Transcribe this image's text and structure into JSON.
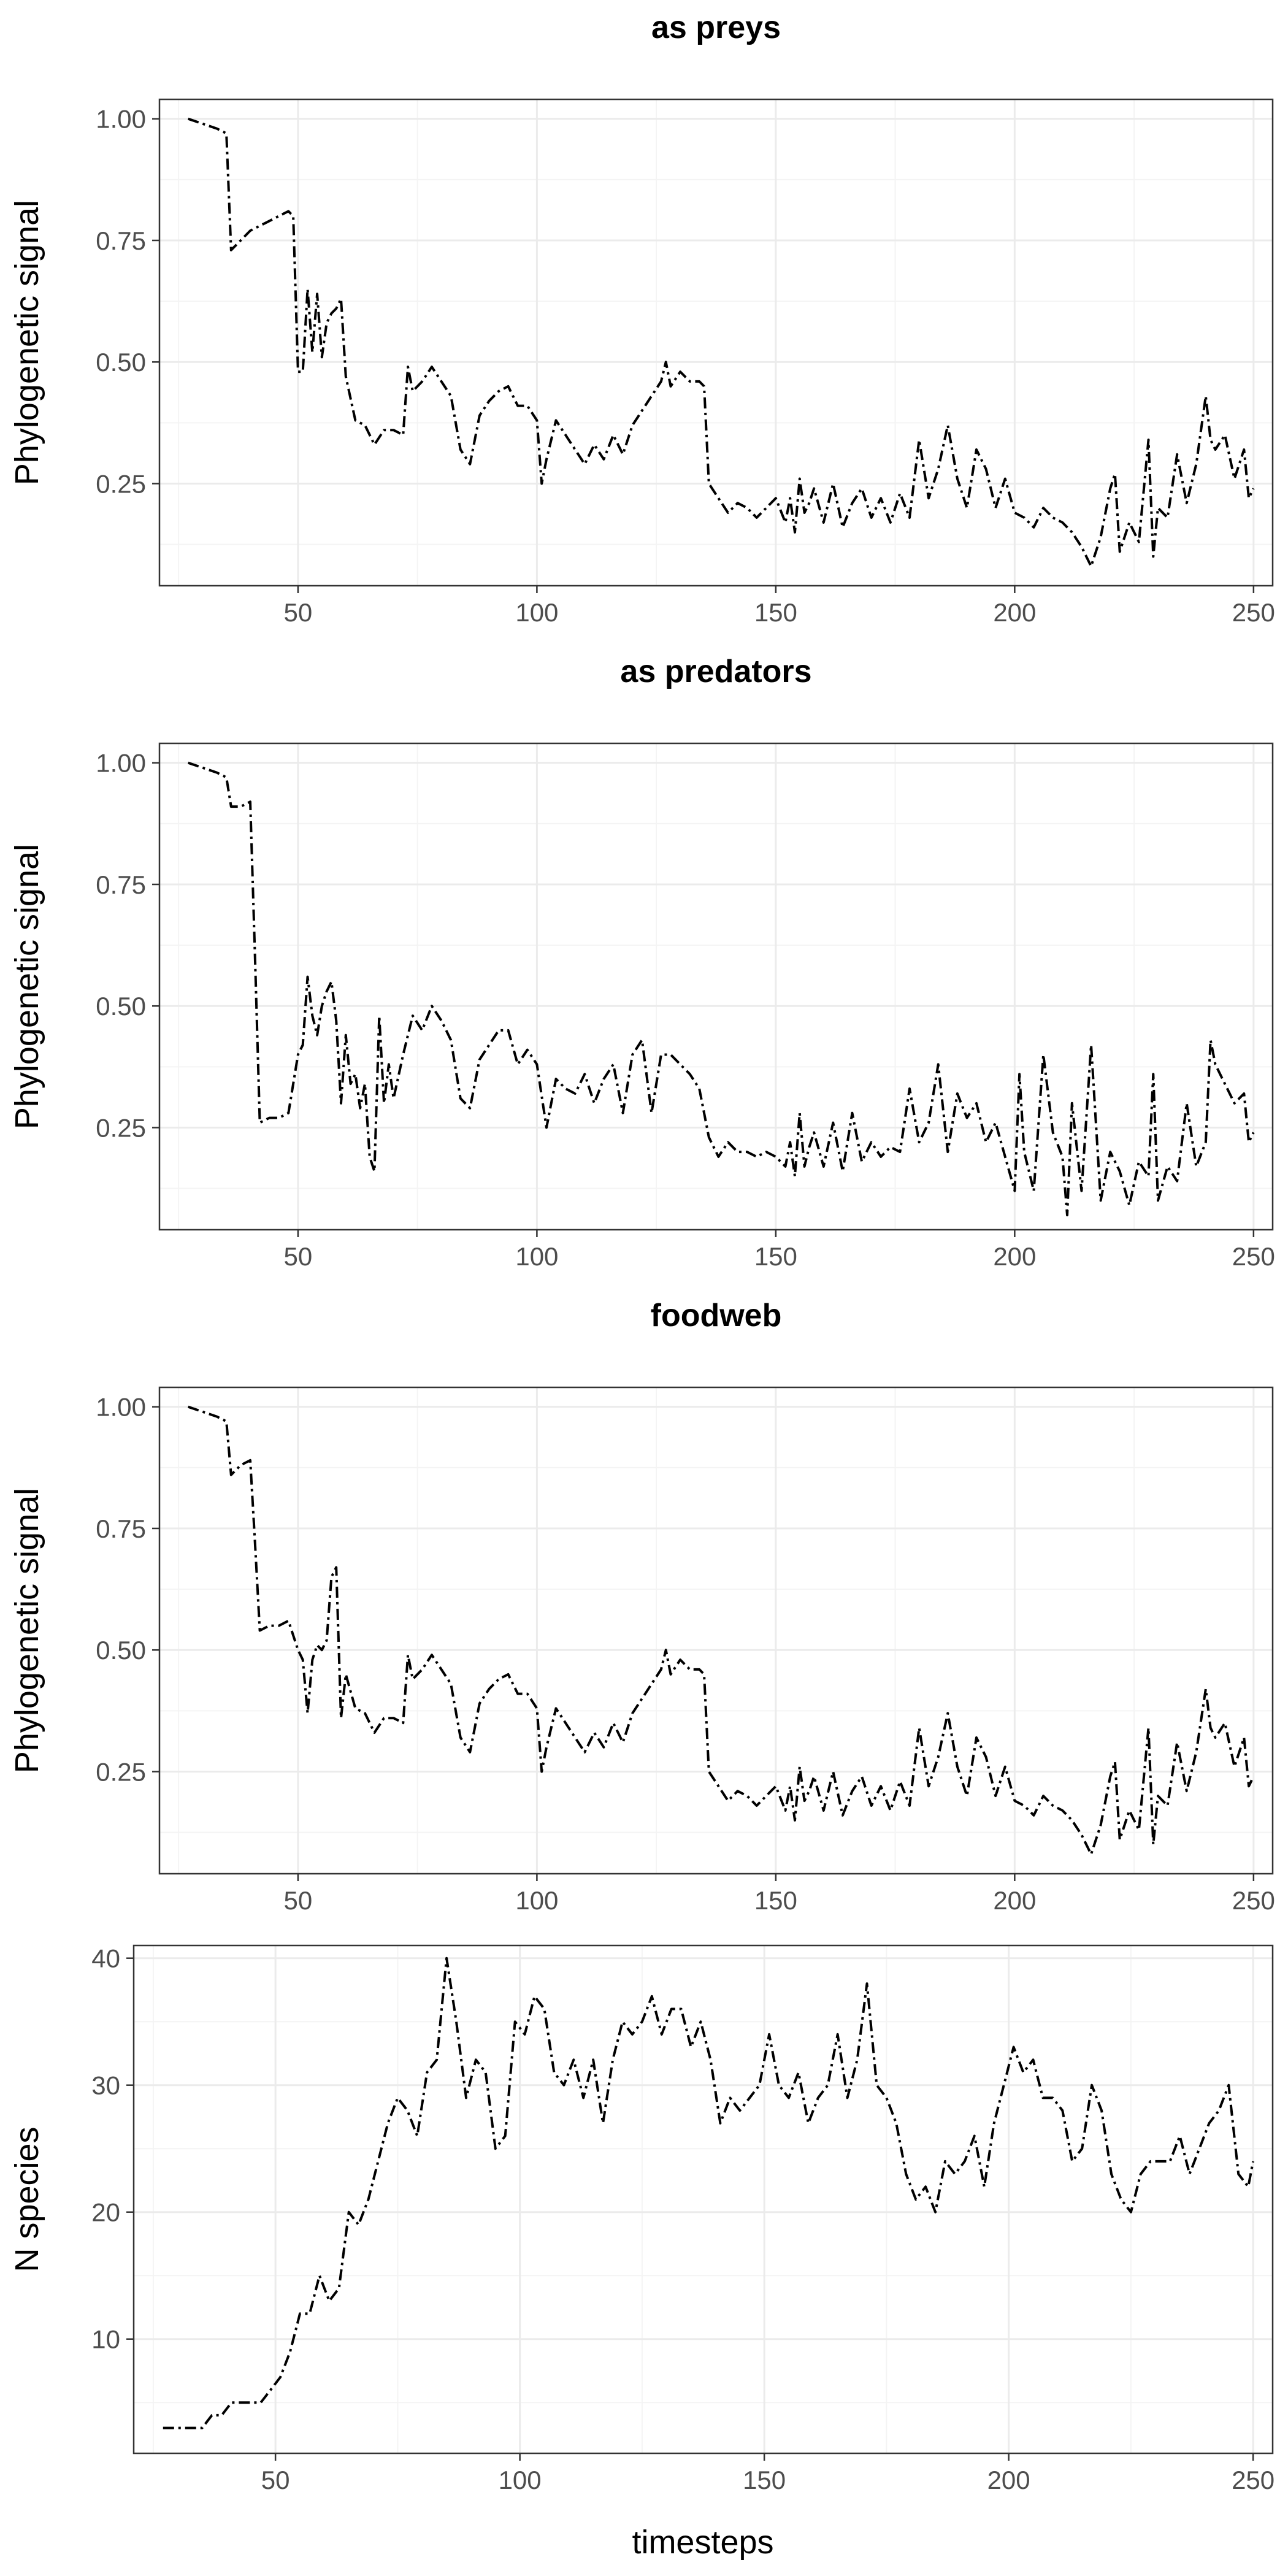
{
  "chart_data": [
    {
      "type": "line",
      "title": "as preys",
      "xlabel": "",
      "ylabel": "Phylogenetic signal",
      "xlim": [
        21,
        254
      ],
      "ylim": [
        0.04,
        1.04
      ],
      "xticks": [
        50,
        100,
        150,
        200,
        250
      ],
      "yticks": [
        0.25,
        0.5,
        0.75,
        1.0
      ],
      "ytick_labels": [
        "0.25",
        "0.50",
        "0.75",
        "1.00"
      ],
      "grid": true,
      "legend": "none",
      "x": [
        27,
        30,
        33,
        35,
        36,
        38,
        40,
        42,
        44,
        46,
        48,
        49,
        50,
        51,
        52,
        53,
        54,
        55,
        56,
        57,
        58,
        59,
        60,
        62,
        64,
        66,
        68,
        70,
        72,
        73,
        74,
        76,
        78,
        80,
        82,
        84,
        86,
        88,
        90,
        92,
        94,
        96,
        98,
        100,
        101,
        102,
        104,
        106,
        108,
        110,
        112,
        114,
        116,
        118,
        120,
        122,
        124,
        126,
        127,
        128,
        130,
        132,
        134,
        135,
        136,
        138,
        140,
        142,
        144,
        146,
        148,
        150,
        152,
        153,
        154,
        155,
        156,
        157,
        158,
        160,
        162,
        164,
        166,
        168,
        170,
        172,
        174,
        176,
        178,
        180,
        182,
        184,
        186,
        188,
        190,
        192,
        194,
        196,
        198,
        200,
        202,
        204,
        206,
        208,
        210,
        212,
        214,
        216,
        218,
        220,
        221,
        222,
        224,
        226,
        228,
        229,
        230,
        232,
        234,
        236,
        238,
        240,
        241,
        242,
        244,
        246,
        248,
        249,
        250
      ],
      "series": [
        {
          "color": "#000000",
          "values": [
            1.0,
            0.99,
            0.98,
            0.97,
            0.73,
            0.75,
            0.77,
            0.78,
            0.79,
            0.8,
            0.81,
            0.8,
            0.48,
            0.48,
            0.65,
            0.52,
            0.64,
            0.51,
            0.58,
            0.6,
            0.61,
            0.63,
            0.47,
            0.38,
            0.37,
            0.33,
            0.36,
            0.36,
            0.35,
            0.49,
            0.44,
            0.46,
            0.49,
            0.46,
            0.43,
            0.32,
            0.29,
            0.39,
            0.42,
            0.44,
            0.45,
            0.41,
            0.41,
            0.38,
            0.25,
            0.3,
            0.38,
            0.35,
            0.32,
            0.29,
            0.33,
            0.3,
            0.35,
            0.31,
            0.37,
            0.4,
            0.43,
            0.46,
            0.5,
            0.45,
            0.48,
            0.46,
            0.46,
            0.45,
            0.25,
            0.22,
            0.19,
            0.21,
            0.2,
            0.18,
            0.2,
            0.22,
            0.17,
            0.22,
            0.15,
            0.26,
            0.19,
            0.21,
            0.24,
            0.17,
            0.25,
            0.16,
            0.21,
            0.24,
            0.18,
            0.22,
            0.17,
            0.23,
            0.18,
            0.34,
            0.22,
            0.28,
            0.37,
            0.26,
            0.2,
            0.32,
            0.28,
            0.2,
            0.26,
            0.19,
            0.18,
            0.16,
            0.2,
            0.18,
            0.17,
            0.15,
            0.12,
            0.08,
            0.14,
            0.24,
            0.27,
            0.11,
            0.17,
            0.13,
            0.34,
            0.1,
            0.2,
            0.18,
            0.31,
            0.21,
            0.29,
            0.43,
            0.34,
            0.32,
            0.35,
            0.26,
            0.32,
            0.22,
            0.24
          ]
        }
      ]
    },
    {
      "type": "line",
      "title": "as predators",
      "xlabel": "",
      "ylabel": "Phylogenetic signal",
      "xlim": [
        21,
        254
      ],
      "ylim": [
        0.04,
        1.04
      ],
      "xticks": [
        50,
        100,
        150,
        200,
        250
      ],
      "yticks": [
        0.25,
        0.5,
        0.75,
        1.0
      ],
      "ytick_labels": [
        "0.25",
        "0.50",
        "0.75",
        "1.00"
      ],
      "grid": true,
      "legend": "none",
      "x": [
        27,
        30,
        33,
        35,
        36,
        38,
        40,
        41,
        42,
        44,
        46,
        48,
        50,
        51,
        52,
        53,
        54,
        55,
        56,
        57,
        58,
        59,
        60,
        61,
        62,
        63,
        64,
        65,
        66,
        67,
        68,
        69,
        70,
        72,
        74,
        76,
        78,
        80,
        82,
        84,
        86,
        88,
        90,
        92,
        94,
        96,
        98,
        100,
        102,
        104,
        106,
        108,
        110,
        112,
        114,
        116,
        118,
        120,
        122,
        124,
        126,
        128,
        130,
        132,
        134,
        136,
        138,
        140,
        142,
        144,
        146,
        148,
        150,
        152,
        153,
        154,
        155,
        156,
        157,
        158,
        160,
        162,
        164,
        166,
        168,
        170,
        172,
        174,
        176,
        178,
        180,
        182,
        184,
        186,
        188,
        190,
        192,
        194,
        196,
        198,
        200,
        201,
        202,
        204,
        206,
        208,
        210,
        211,
        212,
        214,
        216,
        218,
        220,
        222,
        224,
        226,
        228,
        229,
        230,
        232,
        234,
        236,
        238,
        240,
        241,
        242,
        244,
        246,
        248,
        249,
        250
      ],
      "series": [
        {
          "color": "#000000",
          "values": [
            1.0,
            0.99,
            0.98,
            0.97,
            0.91,
            0.91,
            0.92,
            0.6,
            0.26,
            0.27,
            0.27,
            0.28,
            0.4,
            0.42,
            0.56,
            0.48,
            0.44,
            0.5,
            0.53,
            0.55,
            0.47,
            0.3,
            0.44,
            0.34,
            0.36,
            0.29,
            0.34,
            0.19,
            0.16,
            0.48,
            0.3,
            0.38,
            0.31,
            0.4,
            0.48,
            0.45,
            0.5,
            0.47,
            0.43,
            0.31,
            0.29,
            0.39,
            0.42,
            0.45,
            0.45,
            0.38,
            0.41,
            0.38,
            0.25,
            0.35,
            0.33,
            0.32,
            0.36,
            0.3,
            0.35,
            0.38,
            0.28,
            0.4,
            0.43,
            0.28,
            0.4,
            0.4,
            0.38,
            0.36,
            0.33,
            0.23,
            0.19,
            0.22,
            0.2,
            0.2,
            0.19,
            0.2,
            0.19,
            0.17,
            0.22,
            0.15,
            0.28,
            0.17,
            0.21,
            0.24,
            0.17,
            0.26,
            0.16,
            0.28,
            0.18,
            0.22,
            0.19,
            0.21,
            0.2,
            0.33,
            0.22,
            0.26,
            0.38,
            0.2,
            0.32,
            0.27,
            0.3,
            0.22,
            0.26,
            0.19,
            0.12,
            0.36,
            0.2,
            0.12,
            0.4,
            0.24,
            0.19,
            0.07,
            0.3,
            0.12,
            0.42,
            0.1,
            0.2,
            0.16,
            0.09,
            0.18,
            0.15,
            0.36,
            0.1,
            0.17,
            0.14,
            0.3,
            0.17,
            0.22,
            0.43,
            0.38,
            0.34,
            0.3,
            0.32,
            0.22,
            0.24
          ]
        }
      ]
    },
    {
      "type": "line",
      "title": "foodweb",
      "xlabel": "",
      "ylabel": "Phylogenetic signal",
      "xlim": [
        21,
        254
      ],
      "ylim": [
        0.04,
        1.04
      ],
      "xticks": [
        50,
        100,
        150,
        200,
        250
      ],
      "yticks": [
        0.25,
        0.5,
        0.75,
        1.0
      ],
      "ytick_labels": [
        "0.25",
        "0.50",
        "0.75",
        "1.00"
      ],
      "grid": true,
      "legend": "none",
      "x": [
        27,
        30,
        33,
        35,
        36,
        38,
        40,
        41,
        42,
        44,
        46,
        48,
        50,
        51,
        52,
        53,
        54,
        55,
        56,
        57,
        58,
        59,
        60,
        62,
        64,
        66,
        68,
        70,
        72,
        73,
        74,
        76,
        78,
        80,
        82,
        84,
        86,
        88,
        90,
        92,
        94,
        96,
        98,
        100,
        101,
        102,
        104,
        106,
        108,
        110,
        112,
        114,
        116,
        118,
        120,
        122,
        124,
        126,
        127,
        128,
        130,
        132,
        134,
        135,
        136,
        138,
        140,
        142,
        144,
        146,
        148,
        150,
        152,
        153,
        154,
        155,
        156,
        157,
        158,
        160,
        162,
        164,
        166,
        168,
        170,
        172,
        174,
        176,
        178,
        180,
        182,
        184,
        186,
        188,
        190,
        192,
        194,
        196,
        198,
        200,
        202,
        204,
        206,
        208,
        210,
        212,
        214,
        216,
        218,
        220,
        221,
        222,
        224,
        226,
        228,
        229,
        230,
        232,
        234,
        236,
        238,
        240,
        241,
        242,
        244,
        246,
        248,
        249,
        250
      ],
      "series": [
        {
          "color": "#000000",
          "values": [
            1.0,
            0.99,
            0.98,
            0.97,
            0.86,
            0.88,
            0.89,
            0.72,
            0.54,
            0.55,
            0.55,
            0.56,
            0.5,
            0.48,
            0.37,
            0.48,
            0.51,
            0.5,
            0.52,
            0.65,
            0.67,
            0.36,
            0.45,
            0.38,
            0.37,
            0.33,
            0.36,
            0.36,
            0.35,
            0.49,
            0.44,
            0.46,
            0.49,
            0.46,
            0.43,
            0.32,
            0.29,
            0.39,
            0.42,
            0.44,
            0.45,
            0.41,
            0.41,
            0.38,
            0.25,
            0.3,
            0.38,
            0.35,
            0.32,
            0.29,
            0.33,
            0.3,
            0.35,
            0.31,
            0.37,
            0.4,
            0.43,
            0.46,
            0.5,
            0.45,
            0.48,
            0.46,
            0.46,
            0.45,
            0.25,
            0.22,
            0.19,
            0.21,
            0.2,
            0.18,
            0.2,
            0.22,
            0.17,
            0.22,
            0.15,
            0.26,
            0.19,
            0.21,
            0.24,
            0.17,
            0.25,
            0.16,
            0.21,
            0.24,
            0.18,
            0.22,
            0.17,
            0.23,
            0.18,
            0.34,
            0.22,
            0.28,
            0.37,
            0.26,
            0.2,
            0.32,
            0.28,
            0.2,
            0.26,
            0.19,
            0.18,
            0.16,
            0.2,
            0.18,
            0.17,
            0.15,
            0.12,
            0.08,
            0.14,
            0.24,
            0.27,
            0.11,
            0.17,
            0.13,
            0.34,
            0.1,
            0.2,
            0.18,
            0.31,
            0.21,
            0.29,
            0.42,
            0.34,
            0.32,
            0.35,
            0.26,
            0.32,
            0.22,
            0.24
          ]
        }
      ]
    },
    {
      "type": "line",
      "title": "",
      "xlabel": "timesteps",
      "ylabel": "N species",
      "xlim": [
        21,
        254
      ],
      "ylim": [
        1,
        41
      ],
      "xticks": [
        50,
        100,
        150,
        200,
        250
      ],
      "yticks": [
        10,
        20,
        30,
        40
      ],
      "ytick_labels": [
        "10",
        "20",
        "30",
        "40"
      ],
      "grid": true,
      "legend": "none",
      "x": [
        27,
        30,
        33,
        35,
        37,
        39,
        41,
        43,
        45,
        47,
        49,
        51,
        53,
        55,
        57,
        59,
        61,
        63,
        65,
        67,
        69,
        71,
        73,
        75,
        77,
        79,
        81,
        83,
        85,
        87,
        89,
        91,
        93,
        95,
        97,
        99,
        101,
        103,
        105,
        107,
        109,
        111,
        113,
        115,
        117,
        119,
        121,
        123,
        125,
        127,
        129,
        131,
        133,
        135,
        137,
        139,
        141,
        143,
        145,
        147,
        149,
        151,
        153,
        155,
        157,
        159,
        161,
        163,
        165,
        167,
        169,
        171,
        173,
        175,
        177,
        179,
        181,
        183,
        185,
        187,
        189,
        191,
        193,
        195,
        197,
        199,
        201,
        203,
        205,
        207,
        209,
        211,
        213,
        215,
        217,
        219,
        221,
        223,
        225,
        227,
        229,
        231,
        233,
        235,
        237,
        239,
        241,
        243,
        245,
        247,
        249,
        250
      ],
      "series": [
        {
          "color": "#000000",
          "values": [
            3,
            3,
            3,
            3,
            4,
            4,
            5,
            5,
            5,
            5,
            6,
            7,
            9,
            12,
            12,
            15,
            13,
            14,
            20,
            19,
            21,
            24,
            27,
            29,
            28,
            26,
            31,
            32,
            40,
            35,
            29,
            32,
            31,
            25,
            26,
            35,
            34,
            37,
            36,
            31,
            30,
            32,
            29,
            32,
            27,
            32,
            35,
            34,
            35,
            37,
            34,
            36,
            36,
            33,
            35,
            32,
            27,
            29,
            28,
            29,
            30,
            34,
            30,
            29,
            31,
            27,
            29,
            30,
            34,
            29,
            32,
            38,
            30,
            29,
            27,
            23,
            21,
            22,
            20,
            24,
            23,
            24,
            26,
            22,
            27,
            30,
            33,
            31,
            32,
            29,
            29,
            28,
            24,
            25,
            30,
            28,
            23,
            21,
            20,
            23,
            24,
            24,
            24,
            26,
            23,
            25,
            27,
            28,
            30,
            23,
            22,
            24
          ]
        }
      ]
    }
  ]
}
